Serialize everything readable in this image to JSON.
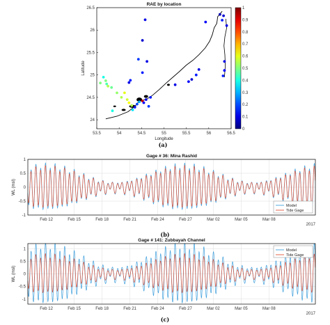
{
  "figures": {
    "a": {
      "caption": "(a)"
    },
    "b": {
      "caption": "(b)"
    },
    "c": {
      "caption": "(c)"
    }
  },
  "colors": {
    "model": "#3f9fdc",
    "tide_gage": "#e2553a",
    "land": "#000000"
  },
  "chart_data": [
    {
      "id": "a",
      "type": "scatter",
      "title": "RAE by location",
      "xlabel": "Longitude",
      "ylabel": "Latitude",
      "xlim": [
        53.5,
        56.5
      ],
      "ylim": [
        23.8,
        26.5
      ],
      "xticks": [
        "53.5",
        "54",
        "54.5",
        "55",
        "55.5",
        "56",
        "56.5"
      ],
      "yticks": [
        "24",
        "24.5",
        "25",
        "25.5",
        "26",
        "26.5"
      ],
      "colorbar": {
        "min": 0,
        "max": 1,
        "ticks": [
          "0",
          "0.1",
          "0.2",
          "0.3",
          "0.4",
          "0.5",
          "0.6",
          "0.7",
          "0.8",
          "0.9",
          "1"
        ]
      },
      "points": [
        {
          "x": 56.25,
          "y": 26.35,
          "v": 0.05
        },
        {
          "x": 56.33,
          "y": 26.32,
          "v": 0.08
        },
        {
          "x": 56.3,
          "y": 26.22,
          "v": 0.15
        },
        {
          "x": 56.4,
          "y": 26.1,
          "v": 0.1
        },
        {
          "x": 55.93,
          "y": 26.18,
          "v": 0.12
        },
        {
          "x": 54.58,
          "y": 26.23,
          "v": 0.1
        },
        {
          "x": 54.52,
          "y": 25.77,
          "v": 0.08
        },
        {
          "x": 54.52,
          "y": 25.05,
          "v": 0.15
        },
        {
          "x": 54.43,
          "y": 25.35,
          "v": 0.18
        },
        {
          "x": 54.62,
          "y": 25.3,
          "v": 0.1
        },
        {
          "x": 54.22,
          "y": 24.83,
          "v": 0.1
        },
        {
          "x": 54.25,
          "y": 24.88,
          "v": 0.15
        },
        {
          "x": 53.7,
          "y": 24.87,
          "v": 0.5
        },
        {
          "x": 53.72,
          "y": 24.8,
          "v": 0.45
        },
        {
          "x": 53.75,
          "y": 24.75,
          "v": 0.55
        },
        {
          "x": 53.65,
          "y": 24.95,
          "v": 0.4
        },
        {
          "x": 53.58,
          "y": 24.82,
          "v": 0.5
        },
        {
          "x": 53.83,
          "y": 24.72,
          "v": 0.48
        },
        {
          "x": 53.95,
          "y": 24.6,
          "v": 0.52
        },
        {
          "x": 54.05,
          "y": 24.5,
          "v": 0.55
        },
        {
          "x": 54.12,
          "y": 24.6,
          "v": 0.6
        },
        {
          "x": 54.18,
          "y": 24.45,
          "v": 0.58
        },
        {
          "x": 54.22,
          "y": 24.38,
          "v": 0.62
        },
        {
          "x": 54.28,
          "y": 24.32,
          "v": 0.55
        },
        {
          "x": 54.3,
          "y": 24.22,
          "v": 0.35
        },
        {
          "x": 54.35,
          "y": 24.28,
          "v": 0.15
        },
        {
          "x": 54.4,
          "y": 24.35,
          "v": 0.2
        },
        {
          "x": 54.45,
          "y": 24.4,
          "v": 0.3
        },
        {
          "x": 54.52,
          "y": 24.42,
          "v": 0.92
        },
        {
          "x": 54.55,
          "y": 24.38,
          "v": 0.12
        },
        {
          "x": 54.6,
          "y": 24.45,
          "v": 0.1
        },
        {
          "x": 54.7,
          "y": 24.5,
          "v": 0.15
        },
        {
          "x": 54.66,
          "y": 24.3,
          "v": 0.18
        },
        {
          "x": 55.25,
          "y": 24.78,
          "v": 0.1
        },
        {
          "x": 55.55,
          "y": 24.85,
          "v": 0.12
        },
        {
          "x": 55.62,
          "y": 24.9,
          "v": 0.08
        },
        {
          "x": 55.72,
          "y": 25.0,
          "v": 0.15
        },
        {
          "x": 55.78,
          "y": 25.12,
          "v": 0.1
        },
        {
          "x": 56.35,
          "y": 25.3,
          "v": 0.1
        },
        {
          "x": 56.35,
          "y": 25.1,
          "v": 0.12
        },
        {
          "x": 56.32,
          "y": 24.98,
          "v": 0.15
        },
        {
          "x": 53.85,
          "y": 24.2,
          "v": 0.4
        }
      ]
    },
    {
      "id": "b",
      "type": "line",
      "title": "Gage # 36: Mina Rashid",
      "ylabel": "WL (msl)",
      "xlabel_right": "2017",
      "xlim_days": [
        10,
        41
      ],
      "ylim": [
        -1,
        1
      ],
      "yticks": [
        -1,
        -0.5,
        0,
        0.5,
        1
      ],
      "xticks": [
        {
          "label": "Feb 12",
          "day": 12
        },
        {
          "label": "Feb 15",
          "day": 15
        },
        {
          "label": "Feb 18",
          "day": 18
        },
        {
          "label": "Feb 21",
          "day": 21
        },
        {
          "label": "Feb 24",
          "day": 24
        },
        {
          "label": "Feb 27",
          "day": 27
        },
        {
          "label": "Mar 02",
          "day": 30
        },
        {
          "label": "Mar 05",
          "day": 33
        },
        {
          "label": "Mar 08",
          "day": 36
        }
      ],
      "legend": [
        "Model",
        "Tide Gage"
      ],
      "legend_loc": "bottom-right"
    },
    {
      "id": "c",
      "type": "line",
      "title": "Gage # 141: Zubbayah Channel",
      "ylabel": "WL (msl)",
      "xlabel_right": "2017",
      "xlim_days": [
        10,
        41
      ],
      "ylim": [
        -1.2,
        1.2
      ],
      "yticks": [
        -1,
        -0.5,
        0,
        0.5,
        1
      ],
      "xticks": [
        {
          "label": "Feb 12",
          "day": 12
        },
        {
          "label": "Feb 15",
          "day": 15
        },
        {
          "label": "Feb 18",
          "day": 18
        },
        {
          "label": "Feb 21",
          "day": 21
        },
        {
          "label": "Feb 24",
          "day": 24
        },
        {
          "label": "Feb 27",
          "day": 27
        },
        {
          "label": "Mar 02",
          "day": 30
        },
        {
          "label": "Mar 05",
          "day": 33
        },
        {
          "label": "Mar 08",
          "day": 36
        }
      ],
      "legend": [
        "Model",
        "Tide Gage"
      ],
      "legend_loc": "top-right"
    }
  ]
}
